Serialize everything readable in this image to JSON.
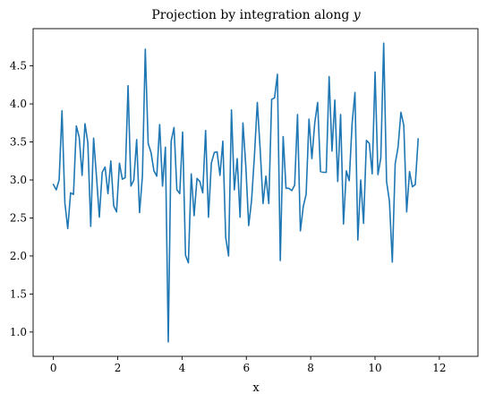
{
  "chart_data": {
    "type": "line",
    "title": "Projection by integration along",
    "title_var": "y",
    "xlabel": "x",
    "ylabel": "",
    "xlim": [
      -0.63,
      13.2
    ],
    "ylim": [
      0.68,
      4.99
    ],
    "xticks": [
      0,
      2,
      4,
      6,
      8,
      10,
      12
    ],
    "xtick_labels": [
      "0",
      "2",
      "4",
      "6",
      "8",
      "10",
      "12"
    ],
    "yticks": [
      1.0,
      1.5,
      2.0,
      2.5,
      3.0,
      3.5,
      4.0,
      4.5
    ],
    "ytick_labels": [
      "1.0",
      "1.5",
      "2.0",
      "2.5",
      "3.0",
      "3.5",
      "4.0",
      "4.5"
    ],
    "grid": false,
    "line_color": "#1f77b4",
    "x_start": 0.0,
    "x_step": 0.0893,
    "series": [
      {
        "values": [
          2.94,
          2.87,
          3.0,
          3.91,
          2.7,
          2.36,
          2.83,
          2.81,
          3.71,
          3.56,
          3.06,
          3.74,
          3.49,
          2.39,
          3.55,
          3.05,
          2.51,
          3.1,
          3.17,
          2.82,
          3.25,
          2.66,
          2.58,
          3.22,
          3.01,
          3.03,
          4.24,
          2.92,
          3.0,
          3.53,
          2.57,
          3.05,
          4.72,
          3.48,
          3.36,
          3.12,
          3.05,
          3.73,
          2.92,
          3.43,
          0.87,
          3.51,
          3.69,
          2.87,
          2.82,
          3.63,
          2.01,
          1.91,
          3.08,
          2.53,
          3.02,
          2.98,
          2.83,
          3.65,
          2.51,
          3.22,
          3.36,
          3.37,
          3.06,
          3.51,
          2.24,
          2.0,
          3.92,
          2.87,
          3.28,
          2.51,
          3.75,
          3.18,
          2.4,
          2.73,
          3.32,
          4.02,
          3.4,
          2.69,
          3.05,
          2.69,
          4.06,
          4.08,
          4.39,
          1.94,
          3.57,
          2.89,
          2.89,
          2.86,
          2.93,
          3.86,
          2.33,
          2.65,
          2.81,
          3.8,
          3.28,
          3.75,
          4.02,
          3.11,
          3.1,
          3.1,
          4.36,
          3.38,
          4.05,
          2.98,
          3.86,
          2.42,
          3.12,
          2.99,
          3.74,
          4.15,
          2.21,
          3.0,
          2.43,
          3.52,
          3.48,
          3.08,
          4.42,
          3.07,
          3.29,
          4.8,
          2.98,
          2.72,
          1.92,
          3.21,
          3.43,
          3.89,
          3.72,
          2.58,
          3.11,
          2.91,
          2.94,
          3.54
        ]
      }
    ]
  }
}
